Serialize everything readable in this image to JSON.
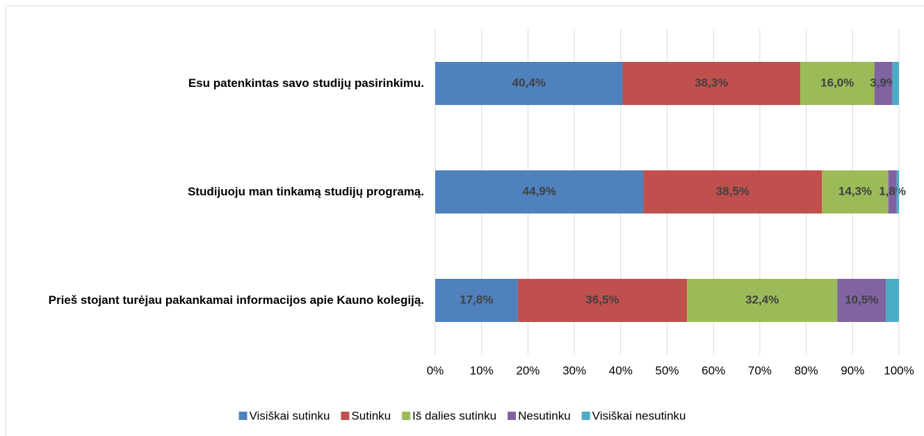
{
  "chart_data": {
    "type": "stacked-bar-horizontal",
    "categories": [
      "Esu patenkintas savo studijų pasirinkimu.",
      "Studijuoju man tinkamą studijų programą.",
      "Prieš stojant turėjau pakankamai informacijos apie Kauno kolegiją."
    ],
    "series": [
      {
        "name": "Visiškai sutinku",
        "color": "#4f81bd",
        "values": [
          40.4,
          44.9,
          17.8
        ],
        "value_labels": [
          "40,4%",
          "44,9%",
          "17,8%"
        ]
      },
      {
        "name": "Sutinku",
        "color": "#c0504d",
        "values": [
          38.3,
          38.5,
          36.5
        ],
        "value_labels": [
          "38,3%",
          "38,5%",
          "36,5%"
        ]
      },
      {
        "name": "Iš dalies sutinku",
        "color": "#9bbb59",
        "values": [
          16.0,
          14.3,
          32.4
        ],
        "value_labels": [
          "16,0%",
          "14,3%",
          "32,4%"
        ]
      },
      {
        "name": "Nesutinku",
        "color": "#8064a2",
        "values": [
          3.9,
          1.8,
          10.5
        ],
        "value_labels": [
          "3,9%",
          "1,8%",
          "10,5%"
        ]
      },
      {
        "name": "Visiškai nesutinku",
        "color": "#4bacc6",
        "values": [
          1.4,
          0.5,
          2.8
        ]
      }
    ],
    "xlim": [
      0,
      100
    ],
    "xticks": [
      {
        "value": 0,
        "label": "0%"
      },
      {
        "value": 10,
        "label": "10%"
      },
      {
        "value": 20,
        "label": "20%"
      },
      {
        "value": 30,
        "label": "30%"
      },
      {
        "value": 40,
        "label": "40%"
      },
      {
        "value": 50,
        "label": "50%"
      },
      {
        "value": 60,
        "label": "60%"
      },
      {
        "value": 70,
        "label": "70%"
      },
      {
        "value": 80,
        "label": "80%"
      },
      {
        "value": 90,
        "label": "90%"
      },
      {
        "value": 100,
        "label": "100%"
      }
    ],
    "grid": true,
    "legend": "bottom"
  }
}
